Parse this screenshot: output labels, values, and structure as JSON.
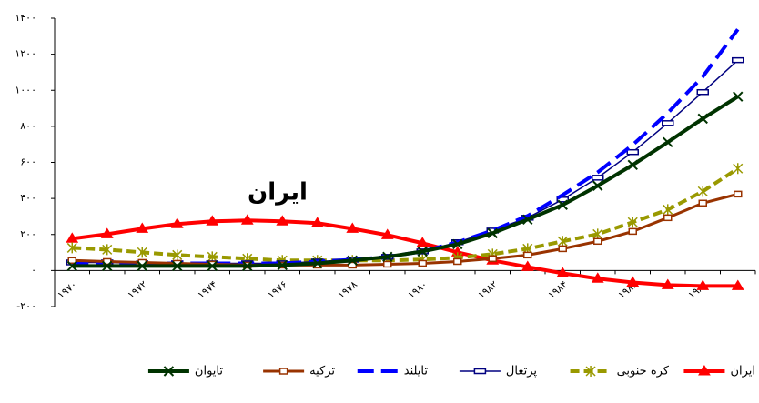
{
  "chart_data": {
    "type": "line",
    "annotation": "ایران",
    "categories": [
      "۱۹۷۰",
      null,
      "۱۹۷۲",
      null,
      "۱۹۷۴",
      null,
      "۱۹۷۶",
      null,
      "۱۹۷۸",
      null,
      "۱۹۸۰",
      null,
      "۱۹۸۲",
      null,
      "۱۹۸۴",
      null,
      "۱۹۸۶",
      null,
      "۱۹۸۸",
      null
    ],
    "ylim": [
      -200,
      1400
    ],
    "yticks": [
      {
        "value": -200,
        "label": "-۲۰۰"
      },
      {
        "value": 0,
        "label": "۰"
      },
      {
        "value": 200,
        "label": "۲۰۰"
      },
      {
        "value": 400,
        "label": "۴۰۰"
      },
      {
        "value": 600,
        "label": "۶۰۰"
      },
      {
        "value": 800,
        "label": "۸۰۰"
      },
      {
        "value": 1000,
        "label": "۱۰۰۰"
      },
      {
        "value": 1200,
        "label": "۱۲۰۰"
      },
      {
        "value": 1400,
        "label": "۱۴۰۰"
      }
    ],
    "series": [
      {
        "name": "ایران",
        "color": "#ff0000",
        "marker": "triangle",
        "dash": "none",
        "width": 4,
        "values": [
          177,
          202,
          232,
          258,
          273,
          278,
          273,
          263,
          232,
          197,
          152,
          101,
          56,
          20,
          -15,
          -45,
          -66,
          -81,
          -86,
          -86
        ]
      },
      {
        "name": "کره جنوبی",
        "color": "#999900",
        "marker": "star",
        "dash": "10,5",
        "width": 4,
        "values": [
          126,
          116,
          101,
          86,
          76,
          66,
          56,
          56,
          56,
          56,
          61,
          71,
          91,
          121,
          162,
          202,
          268,
          338,
          439,
          566
        ]
      },
      {
        "name": "پرتغال",
        "color": "#000080",
        "marker": "bar",
        "dash": "none",
        "width": 1.5,
        "values": [
          45,
          45,
          40,
          40,
          40,
          40,
          40,
          50,
          60,
          76,
          106,
          157,
          222,
          293,
          394,
          515,
          657,
          818,
          990,
          1167
        ]
      },
      {
        "name": "تایلند",
        "color": "#0000ff",
        "marker": "none",
        "dash": "18,8",
        "width": 4,
        "values": [
          45,
          45,
          40,
          40,
          40,
          40,
          40,
          50,
          60,
          76,
          106,
          157,
          222,
          303,
          419,
          545,
          697,
          874,
          1076,
          1338
        ]
      },
      {
        "name": "ترکیه",
        "color": "#993300",
        "marker": "square",
        "dash": "none",
        "width": 3,
        "values": [
          56,
          50,
          45,
          40,
          35,
          30,
          30,
          30,
          30,
          35,
          40,
          50,
          66,
          86,
          121,
          162,
          217,
          293,
          374,
          424
        ]
      },
      {
        "name": "تایوان",
        "color": "#003300",
        "marker": "x",
        "dash": "none",
        "width": 4,
        "values": [
          25,
          25,
          25,
          25,
          25,
          25,
          30,
          40,
          56,
          76,
          106,
          146,
          207,
          283,
          364,
          470,
          586,
          712,
          843,
          965
        ]
      }
    ]
  }
}
